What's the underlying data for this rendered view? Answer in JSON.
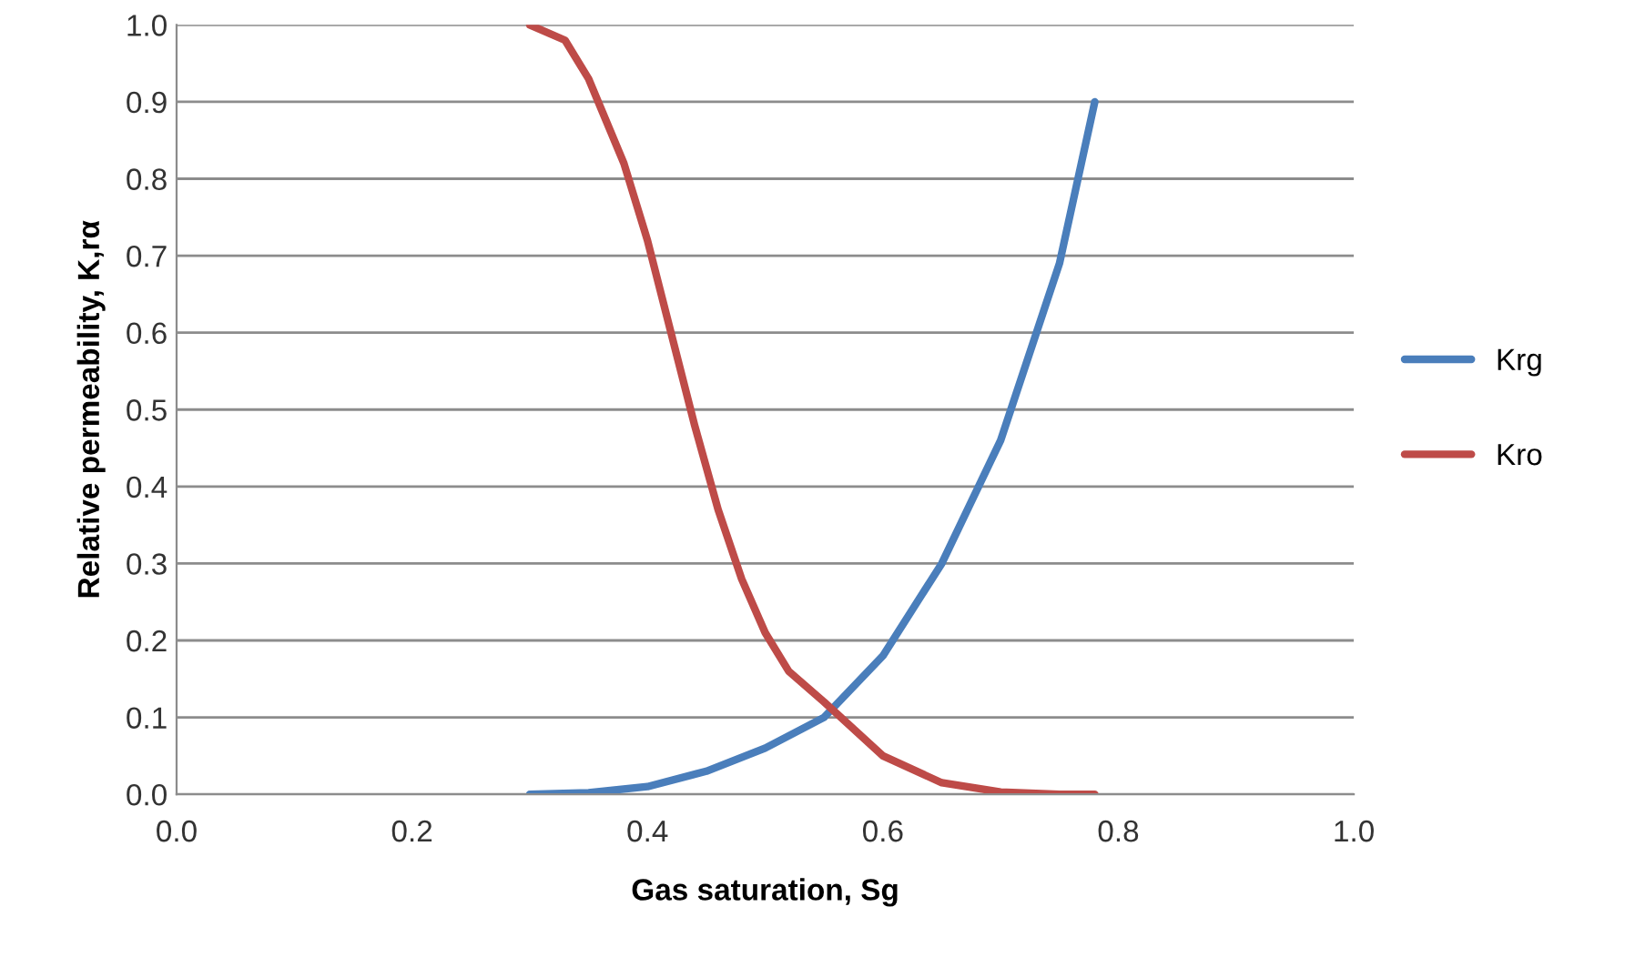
{
  "chart_data": {
    "type": "line",
    "xlabel": "Gas saturation, Sg",
    "ylabel": "Relative permeability, K,rα",
    "series": [
      {
        "name": "Krg",
        "color": "#4a7ebb",
        "x": [
          0.3,
          0.35,
          0.4,
          0.45,
          0.5,
          0.55,
          0.6,
          0.65,
          0.7,
          0.75,
          0.78
        ],
        "values": [
          0.0,
          0.002,
          0.01,
          0.03,
          0.06,
          0.1,
          0.18,
          0.3,
          0.46,
          0.69,
          0.9
        ]
      },
      {
        "name": "Kro",
        "color": "#be4b48",
        "x": [
          0.3,
          0.33,
          0.35,
          0.38,
          0.4,
          0.42,
          0.44,
          0.46,
          0.48,
          0.5,
          0.52,
          0.55,
          0.6,
          0.65,
          0.7,
          0.75,
          0.78
        ],
        "values": [
          1.0,
          0.98,
          0.93,
          0.82,
          0.72,
          0.6,
          0.48,
          0.37,
          0.28,
          0.21,
          0.16,
          0.12,
          0.05,
          0.015,
          0.003,
          0.0,
          0.0
        ]
      }
    ],
    "xlim": [
      0.0,
      1.0
    ],
    "xticks": [
      {
        "value": 0,
        "label": "0.0"
      },
      0.2,
      0.4,
      0.6,
      0.8,
      {
        "value": 1,
        "label": "1.0"
      }
    ],
    "ylim": [
      0.0,
      1.0
    ],
    "yticks": [
      {
        "value": 0,
        "label": "0.0"
      },
      0.1,
      0.2,
      0.3,
      0.4,
      0.5,
      0.6,
      0.7,
      0.8,
      0.9,
      {
        "value": 1,
        "label": "1.0"
      }
    ],
    "grid": "y",
    "legend": "right",
    "marker": "none",
    "line_style": "solid"
  }
}
